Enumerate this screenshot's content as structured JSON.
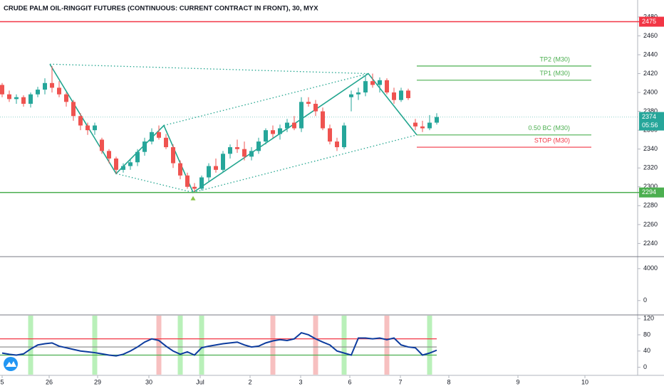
{
  "chart_data": [
    {
      "type": "candlestick",
      "title": "CRUDE PALM OIL-RINGGIT FUTURES (CONTINUOUS: CURRENT CONTRACT IN FRONT), 30, MYX",
      "xlim": [
        -0.3,
        89.2
      ],
      "xticks": [
        {
          "value": 0,
          "label": "5"
        },
        {
          "value": 6.6,
          "label": "26"
        },
        {
          "value": 13.4,
          "label": "29"
        },
        {
          "value": 20.6,
          "label": "30"
        },
        {
          "value": 27.8,
          "label": "Jul"
        },
        {
          "value": 34.8,
          "label": "2"
        },
        {
          "value": 41.9,
          "label": "3"
        },
        {
          "value": 48.8,
          "label": "6"
        },
        {
          "value": 55.9,
          "label": "7"
        },
        {
          "value": 62.7,
          "label": "8"
        },
        {
          "value": 72.4,
          "label": "9"
        },
        {
          "value": 81.8,
          "label": "10"
        }
      ],
      "ylim": [
        2226,
        2498
      ],
      "yticks": [
        2240,
        2260,
        2280,
        2300,
        2320,
        2340,
        2360,
        2380,
        2400,
        2420,
        2440,
        2460,
        2480
      ],
      "up_color": "#26a69a",
      "down_color": "#ef5350",
      "open": [
        2408,
        2398,
        2393,
        2395,
        2388,
        2398,
        2403,
        2410,
        2405,
        2398,
        2390,
        2375,
        2365,
        2360,
        2350,
        2338,
        2330,
        2318,
        2322,
        2326,
        2337,
        2348,
        2358,
        2352,
        2342,
        2325,
        2312,
        2300,
        2298,
        2310,
        2322,
        2318,
        2335,
        2342,
        2340,
        2332,
        2338,
        2348,
        2360,
        2356,
        2362,
        2368,
        2362,
        2390,
        2388,
        2380,
        2362,
        2348,
        2342,
        2395,
        2398,
        2400,
        2412,
        2408,
        2413,
        2400,
        2392,
        2402,
        2368,
        2364,
        2362,
        2368
      ],
      "high": [
        2410,
        2402,
        2398,
        2397,
        2400,
        2406,
        2415,
        2428,
        2412,
        2400,
        2392,
        2378,
        2368,
        2368,
        2352,
        2340,
        2332,
        2325,
        2330,
        2340,
        2352,
        2362,
        2365,
        2356,
        2345,
        2328,
        2315,
        2304,
        2312,
        2325,
        2330,
        2338,
        2345,
        2350,
        2348,
        2342,
        2352,
        2362,
        2365,
        2366,
        2372,
        2375,
        2395,
        2395,
        2392,
        2384,
        2366,
        2352,
        2368,
        2402,
        2405,
        2418,
        2420,
        2416,
        2415,
        2405,
        2405,
        2404,
        2372,
        2370,
        2376,
        2378
      ],
      "low": [
        2395,
        2390,
        2388,
        2385,
        2384,
        2395,
        2398,
        2400,
        2395,
        2385,
        2370,
        2360,
        2355,
        2355,
        2335,
        2325,
        2314,
        2315,
        2318,
        2322,
        2333,
        2345,
        2350,
        2340,
        2320,
        2308,
        2298,
        2294,
        2296,
        2305,
        2315,
        2315,
        2330,
        2336,
        2328,
        2328,
        2335,
        2345,
        2352,
        2350,
        2358,
        2360,
        2358,
        2385,
        2375,
        2360,
        2345,
        2338,
        2340,
        2380,
        2392,
        2396,
        2405,
        2400,
        2398,
        2388,
        2390,
        2392,
        2360,
        2358,
        2360,
        2366
      ],
      "close": [
        2398,
        2393,
        2395,
        2388,
        2398,
        2403,
        2410,
        2405,
        2398,
        2390,
        2375,
        2365,
        2360,
        2365,
        2338,
        2330,
        2318,
        2322,
        2326,
        2337,
        2348,
        2358,
        2352,
        2342,
        2325,
        2312,
        2300,
        2298,
        2310,
        2322,
        2318,
        2335,
        2342,
        2340,
        2332,
        2338,
        2348,
        2360,
        2356,
        2362,
        2368,
        2362,
        2390,
        2388,
        2380,
        2362,
        2348,
        2342,
        2365,
        2398,
        2400,
        2412,
        2408,
        2413,
        2400,
        2392,
        2402,
        2394,
        2364,
        2362,
        2368,
        2374
      ],
      "last_price": 2374,
      "last_price_color": "#26a69a",
      "countdown": "05:56",
      "levels": [
        {
          "value": 2475,
          "color": "#f23645",
          "full_width": true
        },
        {
          "value": 2294,
          "color": "#4caf50",
          "full_width": true
        },
        {
          "value": 2428,
          "color": "#4caf50",
          "label": "TP2 (M30)",
          "x_range": [
            58.2,
            82.7
          ]
        },
        {
          "value": 2413,
          "color": "#4caf50",
          "label": "TP1 (M30)",
          "x_range": [
            58.2,
            82.7
          ]
        },
        {
          "value": 2355,
          "color": "#4caf50",
          "label": "0.50 BC (M30)",
          "x_range": [
            58.2,
            82.7
          ]
        },
        {
          "value": 2342,
          "color": "#f23645",
          "label": "STOP (M30)",
          "x_range": [
            58.2,
            82.7
          ]
        }
      ],
      "trendlines": [
        {
          "style": "solid",
          "color": "#22a58f",
          "x": [
            6.7,
            16,
            22.7,
            26.8,
            51.4,
            58.2
          ],
          "y": [
            2430,
            2314,
            2365,
            2294,
            2420,
            2355
          ]
        },
        {
          "style": "dotted",
          "color": "#22a58f",
          "x": [
            6.7,
            51.4
          ],
          "y": [
            2430,
            2420
          ]
        },
        {
          "style": "dotted",
          "color": "#22a58f",
          "x": [
            22.7,
            51.4
          ],
          "y": [
            2365,
            2420
          ]
        },
        {
          "style": "dotted",
          "color": "#22a58f",
          "x": [
            16,
            26.8
          ],
          "y": [
            2314,
            2294
          ]
        },
        {
          "style": "dotted",
          "color": "#22a58f",
          "x": [
            26.8,
            58.2
          ],
          "y": [
            2294,
            2355
          ]
        }
      ]
    },
    {
      "type": "volume",
      "ylim": [
        -1800,
        5500
      ],
      "yticks": [
        0,
        4000
      ]
    },
    {
      "type": "line",
      "ylim": [
        -20,
        129
      ],
      "yticks": [
        0,
        40,
        80,
        120
      ],
      "color": "#0d3c9e",
      "values": [
        35,
        32,
        30,
        33,
        45,
        55,
        58,
        60,
        52,
        48,
        44,
        40,
        38,
        36,
        33,
        30,
        28,
        32,
        40,
        50,
        62,
        70,
        66,
        52,
        40,
        32,
        38,
        30,
        48,
        52,
        55,
        58,
        60,
        62,
        55,
        50,
        52,
        60,
        65,
        68,
        66,
        70,
        85,
        80,
        70,
        62,
        55,
        40,
        35,
        30,
        72,
        72,
        70,
        72,
        68,
        72,
        55,
        50,
        48,
        30,
        35,
        42
      ],
      "bands": [
        {
          "value": 70,
          "color": "#f23645"
        },
        {
          "value": 50,
          "color": "#888888"
        },
        {
          "value": 30,
          "color": "#4caf50"
        }
      ],
      "green_signals": [
        4,
        13,
        25,
        28,
        48,
        60
      ],
      "red_signals": [
        22,
        38,
        44,
        54
      ],
      "green_signal_color": "#b9f0b9",
      "red_signal_color": "#f7c0c0"
    }
  ]
}
